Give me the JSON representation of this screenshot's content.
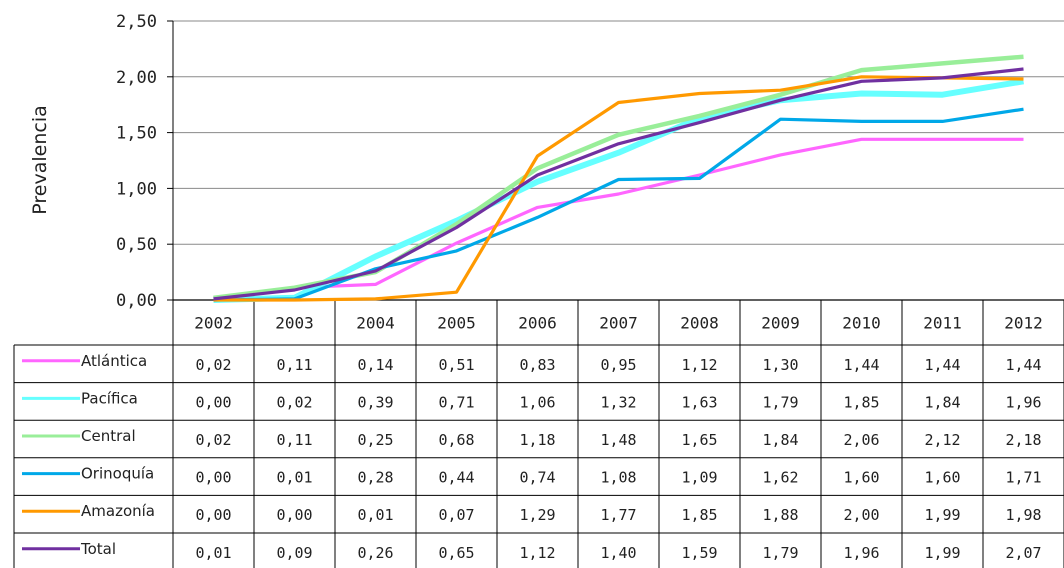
{
  "chart_data": {
    "type": "line",
    "title": "",
    "ylabel": "Prevalencia",
    "xlabel": "",
    "ylim": [
      0,
      2.5
    ],
    "yticks": [
      "0,00",
      "0,50",
      "1,00",
      "1,50",
      "2,00",
      "2,50"
    ],
    "ytick_values": [
      0,
      0.5,
      1,
      1.5,
      2,
      2.5
    ],
    "grid": "horizontal",
    "legend": "data-table-below",
    "categories": [
      "2002",
      "2003",
      "2004",
      "2005",
      "2006",
      "2007",
      "2008",
      "2009",
      "2010",
      "2011",
      "2012"
    ],
    "series": [
      {
        "name": "Atlántica",
        "color": "#ff66ff",
        "values": [
          0.02,
          0.11,
          0.14,
          0.51,
          0.83,
          0.95,
          1.12,
          1.3,
          1.44,
          1.44,
          1.44
        ],
        "labels": [
          "0,02",
          "0,11",
          "0,14",
          "0,51",
          "0,83",
          "0,95",
          "1,12",
          "1,30",
          "1,44",
          "1,44",
          "1,44"
        ]
      },
      {
        "name": "Pacífica",
        "color": "#66ffff",
        "values": [
          0.0,
          0.02,
          0.39,
          0.71,
          1.06,
          1.32,
          1.63,
          1.79,
          1.85,
          1.84,
          1.96
        ],
        "labels": [
          "0,00",
          "0,02",
          "0,39",
          "0,71",
          "1,06",
          "1,32",
          "1,63",
          "1,79",
          "1,85",
          "1,84",
          "1,96"
        ]
      },
      {
        "name": "Central",
        "color": "#99ee99",
        "values": [
          0.02,
          0.11,
          0.25,
          0.68,
          1.18,
          1.48,
          1.65,
          1.84,
          2.06,
          2.12,
          2.18
        ],
        "labels": [
          "0,02",
          "0,11",
          "0,25",
          "0,68",
          "1,18",
          "1,48",
          "1,65",
          "1,84",
          "2,06",
          "2,12",
          "2,18"
        ]
      },
      {
        "name": "Orinoquía",
        "color": "#00a8e8",
        "values": [
          0.0,
          0.01,
          0.28,
          0.44,
          0.74,
          1.08,
          1.09,
          1.62,
          1.6,
          1.6,
          1.71
        ],
        "labels": [
          "0,00",
          "0,01",
          "0,28",
          "0,44",
          "0,74",
          "1,08",
          "1,09",
          "1,62",
          "1,60",
          "1,60",
          "1,71"
        ]
      },
      {
        "name": "Amazonía",
        "color": "#ff9900",
        "values": [
          0.0,
          0.0,
          0.01,
          0.07,
          1.29,
          1.77,
          1.85,
          1.88,
          2.0,
          1.99,
          1.98
        ],
        "labels": [
          "0,00",
          "0,00",
          "0,01",
          "0,07",
          "1,29",
          "1,77",
          "1,85",
          "1,88",
          "2,00",
          "1,99",
          "1,98"
        ]
      },
      {
        "name": "Total",
        "color": "#7030a0",
        "values": [
          0.01,
          0.09,
          0.26,
          0.65,
          1.12,
          1.4,
          1.59,
          1.79,
          1.96,
          1.99,
          2.07
        ],
        "labels": [
          "0,01",
          "0,09",
          "0,26",
          "0,65",
          "1,12",
          "1,40",
          "1,59",
          "1,79",
          "1,96",
          "1,99",
          "2,07"
        ]
      }
    ]
  }
}
